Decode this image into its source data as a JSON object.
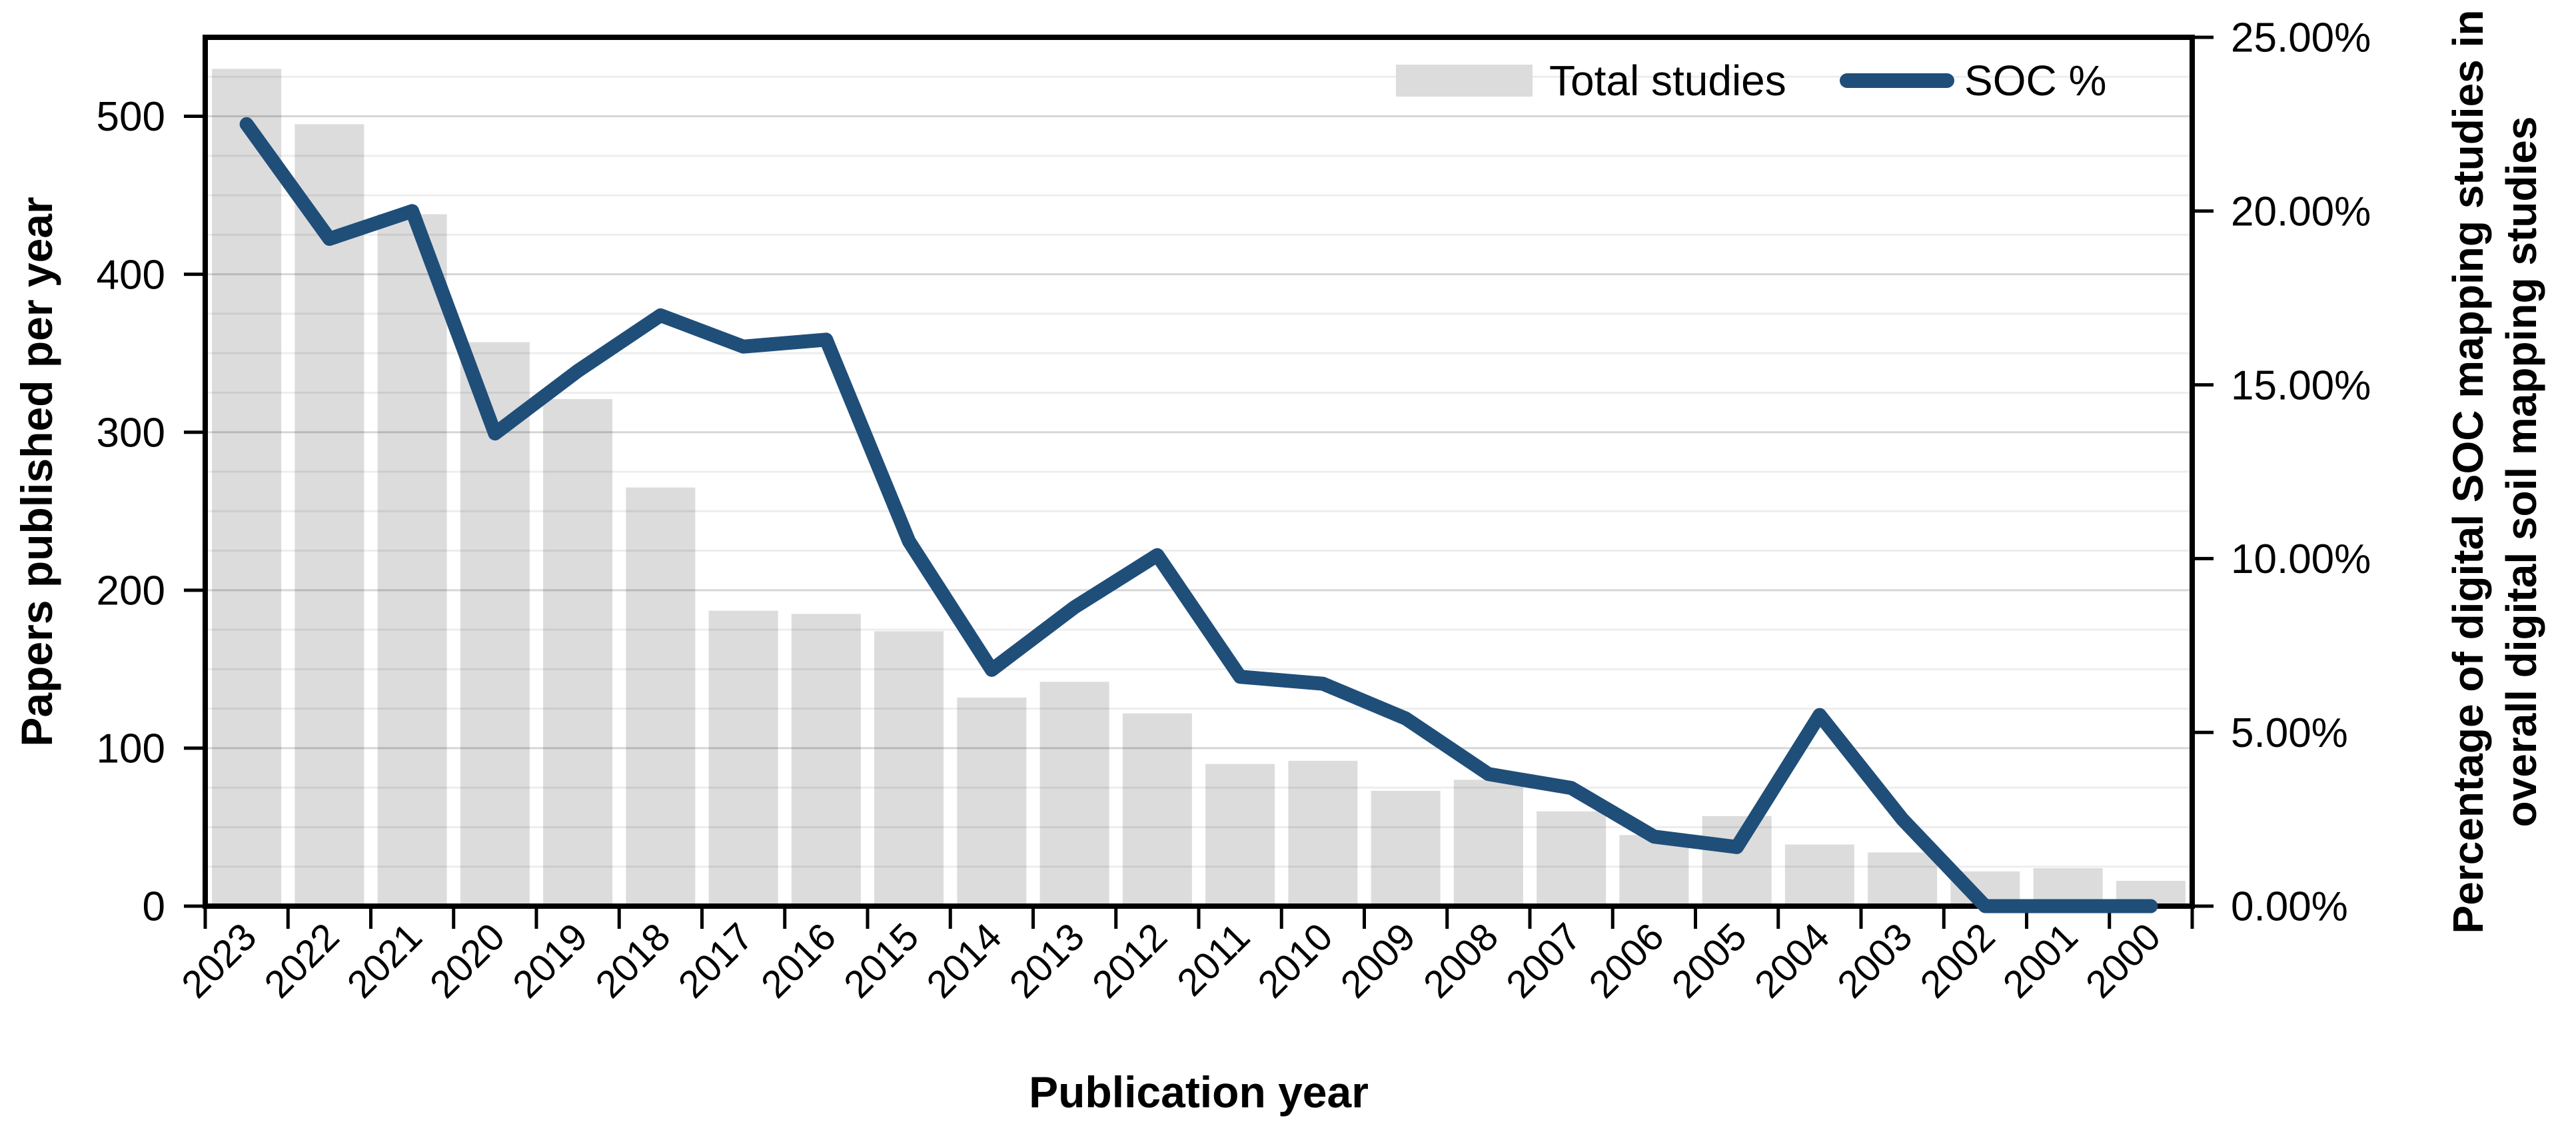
{
  "page": {
    "background": "#ffffff"
  },
  "colors": {
    "bar_fill": "#DCDCDC",
    "line_stroke": "#1F4E79",
    "axis_stroke": "#000000",
    "minor_gridline": "rgba(0,0,0,0.07)",
    "major_gridline": "rgba(0,0,0,0.16)",
    "text": "#000000"
  },
  "legend": {
    "items": [
      {
        "label": "Total studies",
        "swatch": "bar-swatch"
      },
      {
        "label": "SOC %",
        "swatch": "line-swatch"
      }
    ]
  },
  "chart_data": {
    "type": "bar",
    "title": "",
    "categories": [
      "2023",
      "2022",
      "2021",
      "2020",
      "2019",
      "2018",
      "2017",
      "2016",
      "2015",
      "2014",
      "2013",
      "2012",
      "2011",
      "2010",
      "2009",
      "2008",
      "2007",
      "2006",
      "2005",
      "2004",
      "2003",
      "2002",
      "2001",
      "2000"
    ],
    "series": [
      {
        "name": "Total studies",
        "chart": "bar",
        "axis": "left",
        "color": "#DCDCDC",
        "values": [
          530,
          495,
          438,
          357,
          321,
          265,
          187,
          185,
          174,
          132,
          142,
          122,
          90,
          92,
          73,
          80,
          60,
          45,
          57,
          39,
          34,
          22,
          24,
          16
        ]
      },
      {
        "name": "SOC %",
        "chart": "line",
        "axis": "right",
        "color": "#1F4E79",
        "values": [
          22.5,
          19.2,
          20.0,
          13.6,
          15.4,
          17.0,
          16.1,
          16.3,
          10.5,
          6.8,
          8.6,
          10.1,
          6.6,
          6.4,
          5.4,
          3.8,
          3.4,
          2.0,
          1.7,
          5.5,
          2.5,
          0,
          0,
          0
        ]
      }
    ],
    "xlabel": "Publication year",
    "ylabel_left": "Papers published per year",
    "ylabel_right_line1": "Percentage of digital SOC mapping studies in",
    "ylabel_right_line2": "overall digital soil mapping studies",
    "ylim_left": [
      0,
      550
    ],
    "ylim_right": [
      0,
      25
    ],
    "left_ticks": [
      0,
      100,
      200,
      300,
      400,
      500
    ],
    "right_ticks": [
      {
        "value": 0,
        "label": "0.00%"
      },
      {
        "value": 5,
        "label": "5.00%"
      },
      {
        "value": 10,
        "label": "10.00%"
      },
      {
        "value": 15,
        "label": "15.00%"
      },
      {
        "value": 20,
        "label": "20.00%"
      },
      {
        "value": 25,
        "label": "25.00%"
      }
    ],
    "gridlines": {
      "step_left_units": 25,
      "major_every_left_units": 100,
      "orientation": "horizontal"
    },
    "legend_position": "inside-top-right"
  }
}
